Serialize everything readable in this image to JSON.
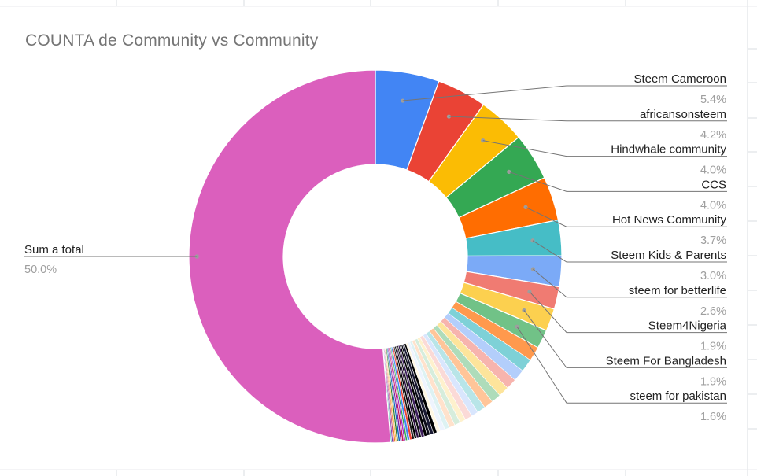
{
  "title": "COUNTA de Community vs Community",
  "chart_data": {
    "type": "pie",
    "donut": true,
    "title": "COUNTA de Community vs Community",
    "labeled_slices": [
      {
        "label": "Steem Cameroon",
        "value": 5.4,
        "value_label": "5.4%",
        "color": "#4285f4"
      },
      {
        "label": "africansonsteem",
        "value": 4.2,
        "value_label": "4.2%",
        "color": "#ea4335"
      },
      {
        "label": "Hindwhale community",
        "value": 4.0,
        "value_label": "4.0%",
        "color": "#fbbc04"
      },
      {
        "label": "CCS",
        "value": 4.0,
        "value_label": "4.0%",
        "color": "#34a853"
      },
      {
        "label": "Hot News Community",
        "value": 3.7,
        "value_label": "3.7%",
        "color": "#ff6d01"
      },
      {
        "label": "Steem Kids & Parents",
        "value": 3.0,
        "value_label": "3.0%",
        "color": "#46bdc6"
      },
      {
        "label": "steem for betterlife",
        "value": 2.6,
        "value_label": "2.6%",
        "color": "#7baaf7"
      },
      {
        "label": "Steem4Nigeria",
        "value": 1.9,
        "value_label": "1.9%",
        "color": "#f07b72"
      },
      {
        "label": "Steem For Bangladesh",
        "value": 1.9,
        "value_label": "1.9%",
        "color": "#fcd04f"
      },
      {
        "label": "steem for pakistan",
        "value": 1.6,
        "value_label": "1.6%",
        "color": "#71c287"
      }
    ],
    "unlabeled_slices": [
      {
        "value": 1.2,
        "color": "#ff994d"
      },
      {
        "value": 1.1,
        "color": "#7ed1d7"
      },
      {
        "value": 1.0,
        "color": "#b3cefb"
      },
      {
        "value": 0.9,
        "color": "#f7b4ae"
      },
      {
        "value": 0.9,
        "color": "#fde49b"
      },
      {
        "value": 0.8,
        "color": "#aedcba"
      },
      {
        "value": 0.8,
        "color": "#ffc599"
      },
      {
        "value": 0.7,
        "color": "#b8e5e8"
      },
      {
        "value": 0.6,
        "color": "#d9e6fd"
      },
      {
        "value": 0.6,
        "color": "#fbdad7"
      },
      {
        "value": 0.5,
        "color": "#fef1cd"
      },
      {
        "value": 0.5,
        "color": "#d6eddc"
      },
      {
        "value": 0.5,
        "color": "#ffe2cc"
      },
      {
        "value": 0.4,
        "color": "#ddf2f3"
      },
      {
        "value": 0.4,
        "color": "#eef4fe"
      },
      {
        "value": 0.3,
        "color": "#fff7e3"
      },
      {
        "value": 0.3,
        "color": "#000000"
      },
      {
        "value": 0.3,
        "color": "#1a1a33"
      },
      {
        "value": 0.25,
        "color": "#0d0d1a"
      },
      {
        "value": 0.25,
        "color": "#000000"
      },
      {
        "value": 0.25,
        "color": "#3d1f5c"
      },
      {
        "value": 0.2,
        "color": "#111111"
      },
      {
        "value": 0.2,
        "color": "#2b0f3f"
      },
      {
        "value": 0.2,
        "color": "#000000"
      },
      {
        "value": 0.2,
        "color": "#1b1b1b"
      },
      {
        "value": 0.2,
        "color": "#ea4335"
      },
      {
        "value": 0.2,
        "color": "#4285f4"
      },
      {
        "value": 0.15,
        "color": "#34a853"
      },
      {
        "value": 0.15,
        "color": "#ab30c4"
      },
      {
        "value": 0.15,
        "color": "#c2185b"
      },
      {
        "value": 0.15,
        "color": "#7b1fa2"
      },
      {
        "value": 0.15,
        "color": "#1565c0"
      },
      {
        "value": 0.15,
        "color": "#2e7d32"
      },
      {
        "value": 0.1,
        "color": "#f9a825"
      },
      {
        "value": 0.1,
        "color": "#ef6c00"
      },
      {
        "value": 0.1,
        "color": "#ad1457"
      },
      {
        "value": 0.1,
        "color": "#6a1b9a"
      },
      {
        "value": 0.1,
        "color": "#26a69a"
      }
    ],
    "total_slice": {
      "label": "Sum a total",
      "value": 50.0,
      "value_label": "50.0%",
      "color": "#db5fbd"
    },
    "legend": "labels-beside-slices"
  }
}
